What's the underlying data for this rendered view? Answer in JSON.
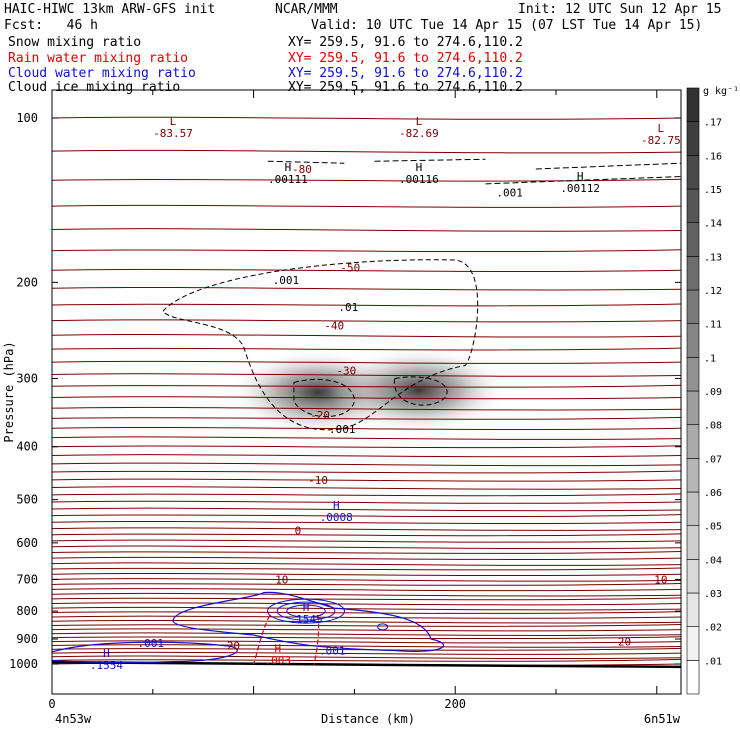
{
  "header": {
    "title": "HAIC-HIWC 13km ARW-GFS init",
    "org": "NCAR/MMM",
    "init": "Init: 12 UTC Sun 12 Apr 15",
    "fcst": "Fcst:   46 h",
    "valid": "Valid: 10 UTC Tue 14 Apr 15 (07 LST Tue 14 Apr 15)",
    "fields": [
      {
        "label": "Snow mixing ratio",
        "xy": "XY= 259.5, 91.6 to 274.6,110.2",
        "color": "#000000"
      },
      {
        "label": "Rain water mixing ratio",
        "xy": "XY= 259.5, 91.6 to 274.6,110.2",
        "color": "#e00000"
      },
      {
        "label": "Cloud water mixing ratio",
        "xy": "XY= 259.5, 91.6 to 274.6,110.2",
        "color": "#1010d0"
      },
      {
        "label": "Cloud ice mixing ratio",
        "xy": "XY= 259.5, 91.6 to 274.6,110.2",
        "color": "#000000"
      }
    ]
  },
  "chart_data": {
    "type": "contour",
    "xlabel": "Distance (km)",
    "ylabel": "Pressure (hPa)",
    "x_ticks": [
      "0",
      "200"
    ],
    "x_end_labels": [
      "4n53w",
      "6n51w"
    ],
    "xlim": [
      0,
      312
    ],
    "y_ticks": [
      100,
      200,
      300,
      400,
      500,
      600,
      700,
      800,
      900,
      1000
    ],
    "ylim": [
      1050,
      65
    ],
    "y_scale": "log",
    "colorbar": {
      "unit_label": "g kg⁻¹",
      "ticks": [
        ".01",
        ".02",
        ".03",
        ".04",
        ".05",
        ".06",
        ".07",
        ".08",
        ".09",
        ".1",
        ".11",
        ".12",
        ".13",
        ".14",
        ".15",
        ".16",
        ".17"
      ],
      "colors": [
        "#ffffff",
        "#f2f2f2",
        "#e6e6e6",
        "#dadada",
        "#cecece",
        "#c2c2c2",
        "#b6b6b6",
        "#aaaaaa",
        "#9e9e9e",
        "#929292",
        "#868686",
        "#7a7a7a",
        "#6e6e6e",
        "#626262",
        "#565656",
        "#4a4a4a",
        "#3e3e3e",
        "#323232"
      ]
    },
    "temperature_labels": [
      {
        "text": "-80",
        "x": 124,
        "p": 124
      },
      {
        "text": "-50",
        "x": 148,
        "p": 188
      },
      {
        "text": "-40",
        "x": 140,
        "p": 240
      },
      {
        "text": "-30",
        "x": 146,
        "p": 290
      },
      {
        "text": "-20",
        "x": 133,
        "p": 350
      },
      {
        "text": "-10",
        "x": 132,
        "p": 460
      },
      {
        "text": "0",
        "x": 122,
        "p": 570
      },
      {
        "text": "10",
        "x": 114,
        "p": 700
      },
      {
        "text": "10",
        "x": 302,
        "p": 700
      },
      {
        "text": "20",
        "x": 90,
        "p": 925
      },
      {
        "text": "20",
        "x": 284,
        "p": 910
      }
    ],
    "extrema": [
      {
        "kind": "L",
        "value": "-83.57",
        "x": 60,
        "p": 103,
        "color": "#7a0000"
      },
      {
        "kind": "L",
        "value": "-82.69",
        "x": 182,
        "p": 103,
        "color": "#7a0000"
      },
      {
        "kind": "L",
        "value": "-82.75",
        "x": 302,
        "p": 106,
        "color": "#7a0000"
      },
      {
        "kind": "H",
        "value": ".00111",
        "x": 117,
        "p": 125,
        "color": "#000000"
      },
      {
        "kind": "H",
        "value": ".00116",
        "x": 182,
        "p": 125,
        "color": "#000000"
      },
      {
        "kind": "H",
        "value": ".00112",
        "x": 262,
        "p": 130,
        "color": "#000000"
      },
      {
        "kind": "H",
        "value": ".0008",
        "x": 141,
        "p": 520,
        "color": "#1010d0"
      },
      {
        "kind": "H",
        "value": ".1545",
        "x": 126,
        "p": 800,
        "color": "#1010d0"
      },
      {
        "kind": "H",
        "value": ".1554",
        "x": 27,
        "p": 970,
        "color": "#1010d0"
      },
      {
        "kind": "H",
        "value": ".003",
        "x": 112,
        "p": 950,
        "color": "#e00000"
      }
    ],
    "contour_labels": [
      {
        "text": ".001",
        "x": 116,
        "p": 198,
        "color": "#000000"
      },
      {
        "text": ".01",
        "x": 147,
        "p": 222,
        "color": "#000000"
      },
      {
        "text": ".001",
        "x": 144,
        "p": 371,
        "color": "#000000"
      },
      {
        "text": ".001",
        "x": 227,
        "p": 137,
        "color": "#000000"
      },
      {
        "text": ".001",
        "x": 49,
        "p": 915,
        "color": "#1010d0"
      },
      {
        "text": ".001",
        "x": 139,
        "p": 945,
        "color": "#1010d0"
      }
    ],
    "snow_maxima": [
      {
        "x": 132,
        "p": 318,
        "value": 0.15
      },
      {
        "x": 182,
        "p": 315,
        "value": 0.16
      }
    ]
  }
}
